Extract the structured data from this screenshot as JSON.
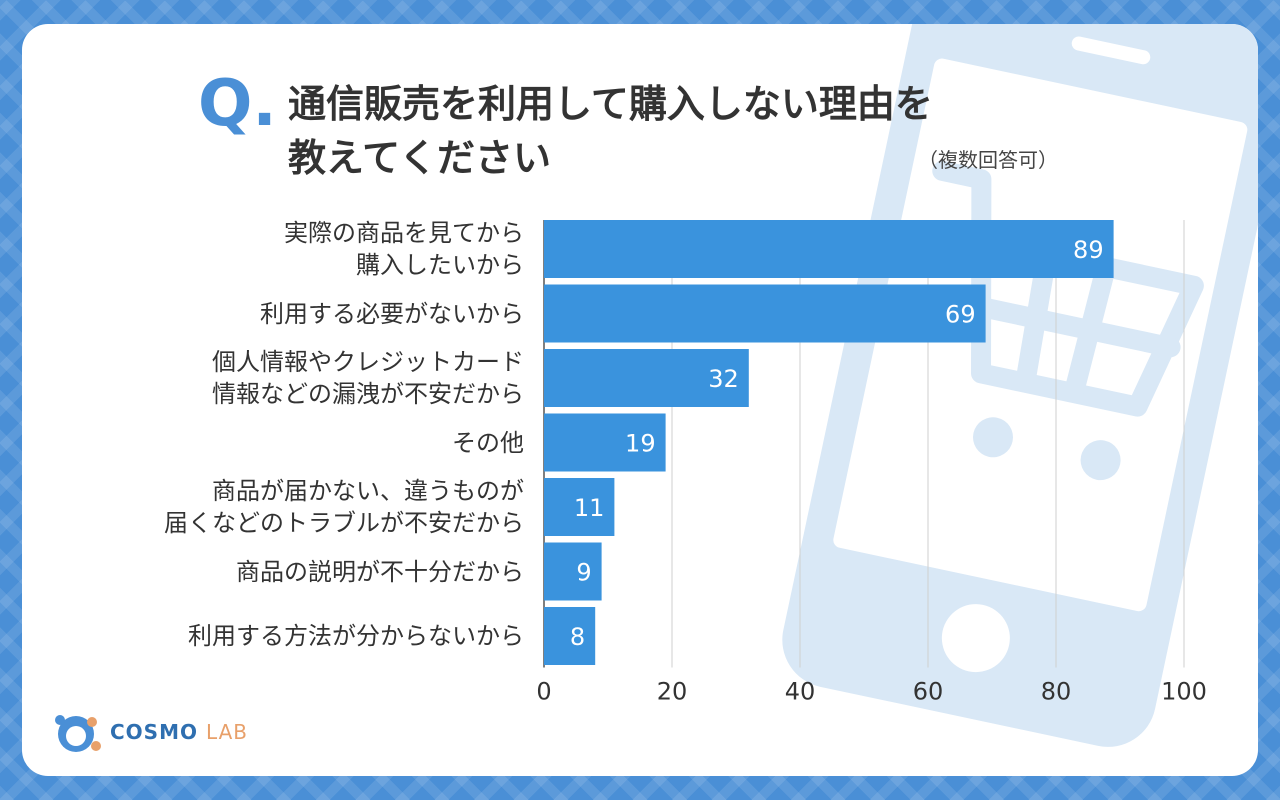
{
  "question_mark": "Q.",
  "title": {
    "line1": "通信販売を利用して購入しない理由を",
    "line2": "教えてください",
    "note": "（複数回答可）"
  },
  "chart_data": {
    "type": "bar",
    "orientation": "horizontal",
    "categories": [
      "実際の商品を見てから\n購入したいから",
      "利用する必要がないから",
      "個人情報やクレジットカード\n情報などの漏洩が不安だから",
      "その他",
      "商品が届かない、違うものが\n届くなどのトラブルが不安だから",
      "商品の説明が不十分だから",
      "利用する方法が分からないから"
    ],
    "values": [
      89,
      69,
      32,
      19,
      11,
      9,
      8
    ],
    "xlim": [
      0,
      100
    ],
    "xticks": [
      "0",
      "20",
      "40",
      "60",
      "80",
      "100"
    ],
    "grid": true,
    "bar_color": "#3a93dd",
    "data_labels": true
  },
  "logo": {
    "brand": "COSMO",
    "suffix": "LAB"
  },
  "colors": {
    "accent": "#4a8fd6",
    "bar": "#3a93dd",
    "background_phone": "#d9e8f6"
  }
}
